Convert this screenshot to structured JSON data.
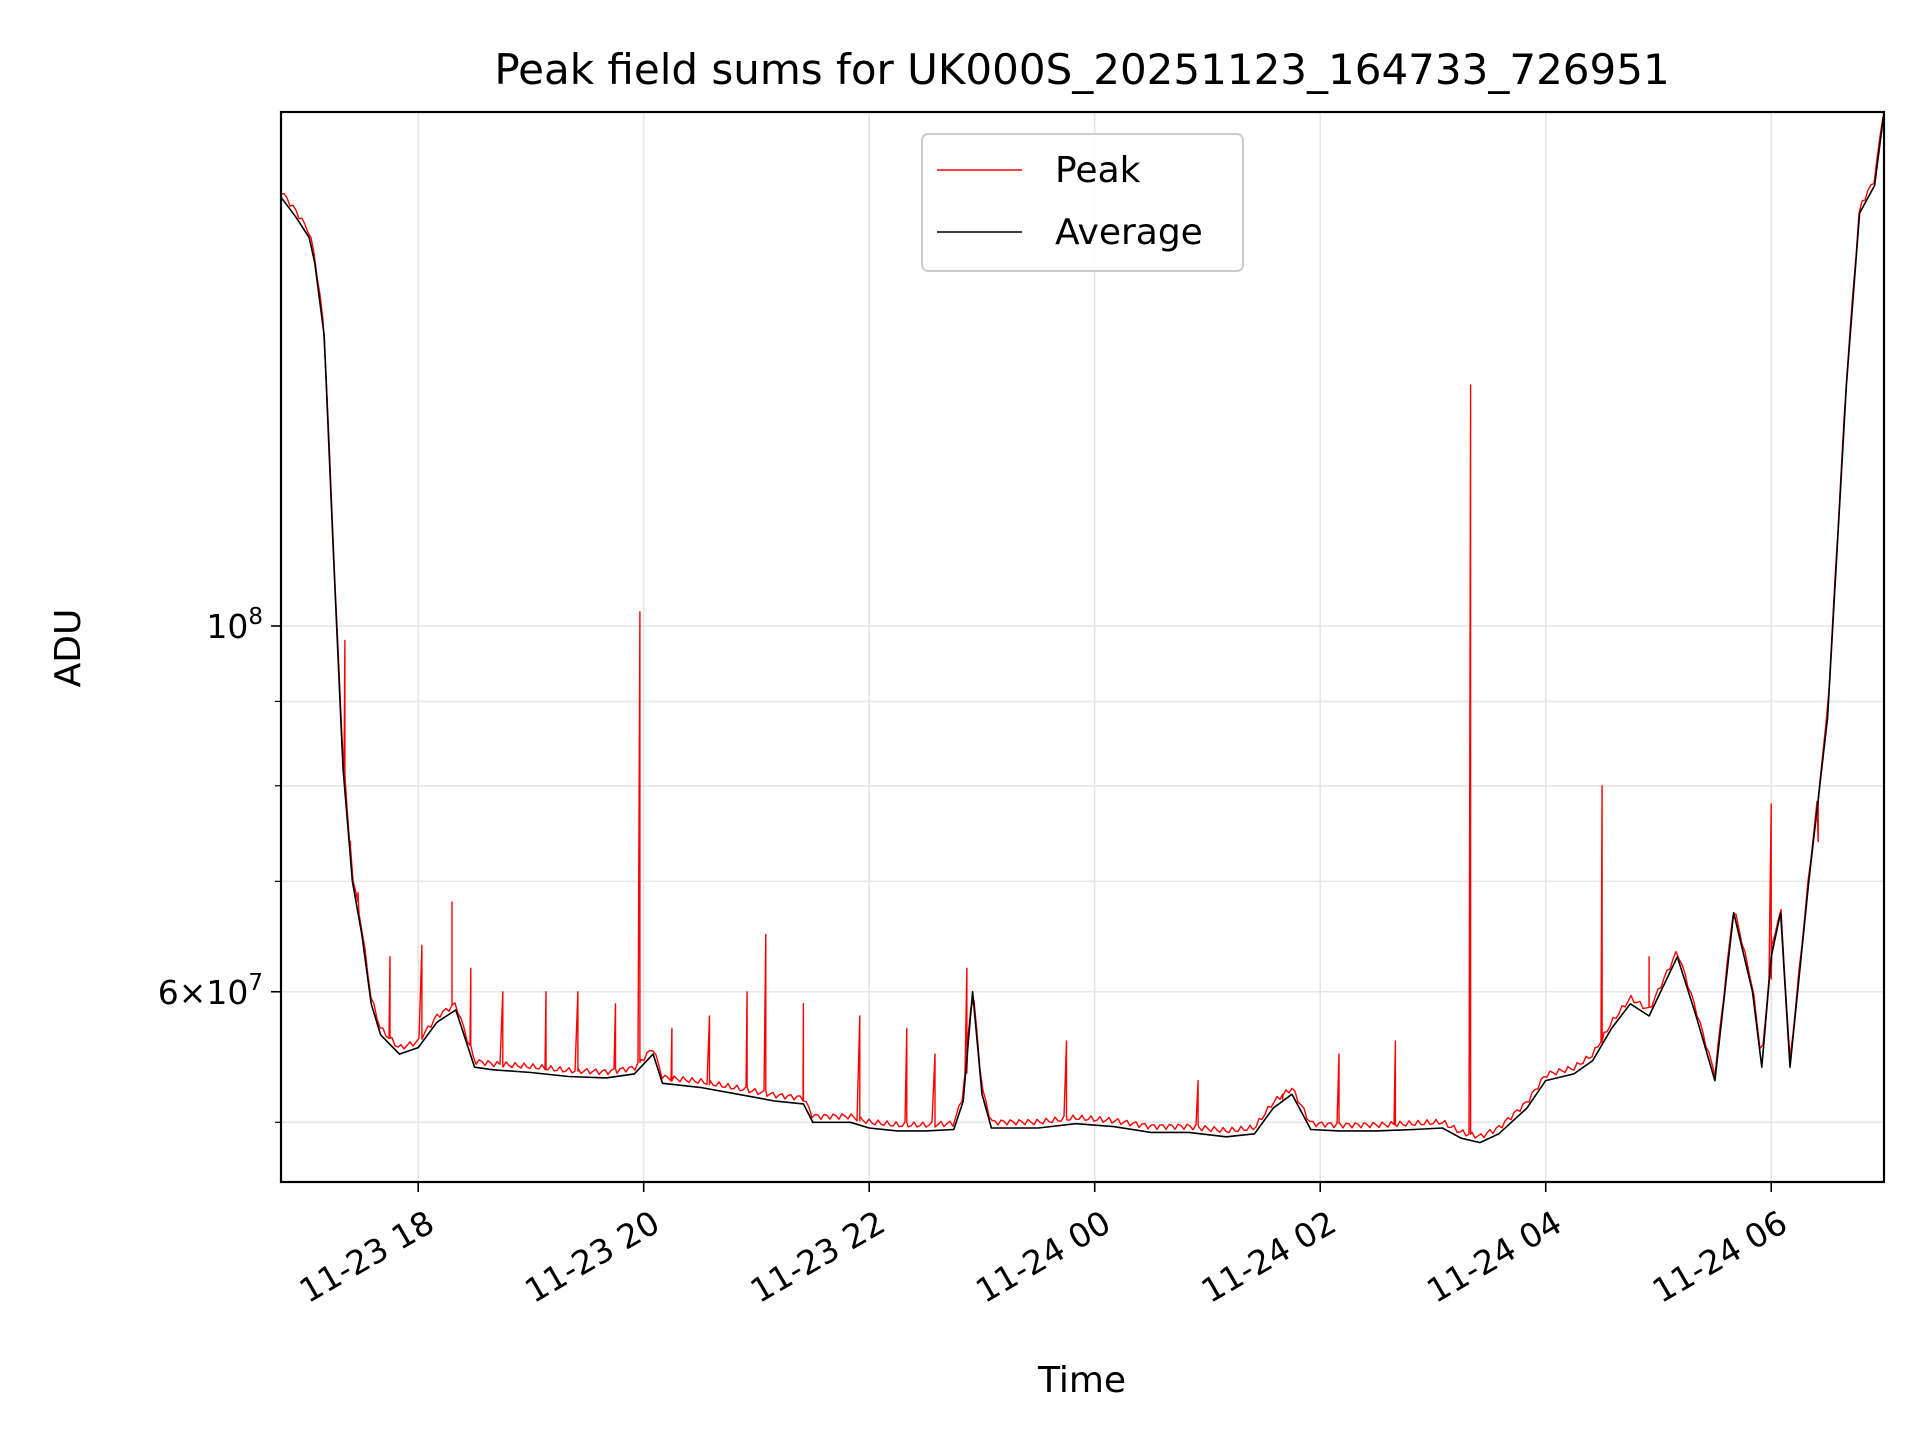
{
  "chart_data": {
    "type": "line",
    "title": "Peak field sums for UK000S_20251123_164733_726951",
    "xlabel": "Time",
    "ylabel": "ADU",
    "y_scale": "log",
    "grid": true,
    "legend_position": "upper-center",
    "xlim": [
      "11-23 16:47",
      "11-24 07:00"
    ],
    "ylim": [
      46000000,
      205000000
    ],
    "x_ticks": [
      "11-23 18",
      "11-23 20",
      "11-23 22",
      "11-24 00",
      "11-24 02",
      "11-24 04",
      "11-24 06"
    ],
    "y_ticks": [
      {
        "value": 100000000,
        "base": "10",
        "exp": "8",
        "mantissa": ""
      },
      {
        "value": 60000000,
        "base": "10",
        "exp": "7",
        "mantissa": "6"
      }
    ],
    "series": [
      {
        "name": "Peak",
        "color": "#ff0000",
        "spikes": [
          [
            "11-23 17:21",
            98000000
          ],
          [
            "11-23 17:24",
            74000000
          ],
          [
            "11-23 17:28",
            68000000
          ],
          [
            "11-23 17:45",
            63000000
          ],
          [
            "11-23 18:02",
            64000000
          ],
          [
            "11-23 18:18",
            68000000
          ],
          [
            "11-23 18:28",
            62000000
          ],
          [
            "11-23 18:45",
            60000000
          ],
          [
            "11-23 19:08",
            60000000
          ],
          [
            "11-23 19:25",
            60000000
          ],
          [
            "11-23 19:45",
            59000000
          ],
          [
            "11-23 19:58",
            102000000
          ],
          [
            "11-23 20:15",
            57000000
          ],
          [
            "11-23 20:35",
            58000000
          ],
          [
            "11-23 20:55",
            60000000
          ],
          [
            "11-23 21:05",
            65000000
          ],
          [
            "11-23 21:25",
            59000000
          ],
          [
            "11-23 21:55",
            58000000
          ],
          [
            "11-23 22:20",
            57000000
          ],
          [
            "11-23 22:35",
            55000000
          ],
          [
            "11-23 22:52",
            62000000
          ],
          [
            "11-23 23:45",
            56000000
          ],
          [
            "11-24 00:55",
            53000000
          ],
          [
            "11-24 01:40",
            52000000
          ],
          [
            "11-24 02:10",
            55000000
          ],
          [
            "11-24 02:40",
            56000000
          ],
          [
            "11-24 03:20",
            140000000
          ],
          [
            "11-24 04:30",
            80000000
          ],
          [
            "11-24 04:55",
            63000000
          ],
          [
            "11-24 06:00",
            78000000
          ],
          [
            "11-24 06:25",
            74000000
          ]
        ]
      },
      {
        "name": "Average",
        "color": "#000000",
        "points": [
          [
            "11-23 16:47",
            182000000
          ],
          [
            "11-23 16:55",
            177000000
          ],
          [
            "11-23 17:02",
            172000000
          ],
          [
            "11-23 17:05",
            166000000
          ],
          [
            "11-23 17:10",
            150000000
          ],
          [
            "11-23 17:15",
            110000000
          ],
          [
            "11-23 17:20",
            82000000
          ],
          [
            "11-23 17:25",
            70000000
          ],
          [
            "11-23 17:30",
            65000000
          ],
          [
            "11-23 17:35",
            59000000
          ],
          [
            "11-23 17:40",
            56500000
          ],
          [
            "11-23 17:50",
            55000000
          ],
          [
            "11-23 18:00",
            55500000
          ],
          [
            "11-23 18:10",
            57500000
          ],
          [
            "11-23 18:20",
            58500000
          ],
          [
            "11-23 18:30",
            54000000
          ],
          [
            "11-23 18:40",
            53800000
          ],
          [
            "11-23 19:00",
            53600000
          ],
          [
            "11-23 19:20",
            53300000
          ],
          [
            "11-23 19:40",
            53200000
          ],
          [
            "11-23 19:55",
            53500000
          ],
          [
            "11-23 20:05",
            55000000
          ],
          [
            "11-23 20:10",
            52800000
          ],
          [
            "11-23 20:30",
            52500000
          ],
          [
            "11-23 20:50",
            52000000
          ],
          [
            "11-23 21:10",
            51500000
          ],
          [
            "11-23 21:25",
            51300000
          ],
          [
            "11-23 21:30",
            50000000
          ],
          [
            "11-23 21:50",
            50000000
          ],
          [
            "11-23 22:00",
            49600000
          ],
          [
            "11-23 22:15",
            49400000
          ],
          [
            "11-23 22:30",
            49400000
          ],
          [
            "11-23 22:45",
            49500000
          ],
          [
            "11-23 22:50",
            51500000
          ],
          [
            "11-23 22:55",
            60000000
          ],
          [
            "11-23 23:00",
            52000000
          ],
          [
            "11-23 23:05",
            49600000
          ],
          [
            "11-23 23:30",
            49600000
          ],
          [
            "11-23 23:50",
            49900000
          ],
          [
            "11-24 00:10",
            49700000
          ],
          [
            "11-24 00:30",
            49300000
          ],
          [
            "11-24 00:50",
            49300000
          ],
          [
            "11-24 01:10",
            49000000
          ],
          [
            "11-24 01:25",
            49200000
          ],
          [
            "11-24 01:35",
            51000000
          ],
          [
            "11-24 01:45",
            52000000
          ],
          [
            "11-24 01:55",
            49500000
          ],
          [
            "11-24 02:10",
            49400000
          ],
          [
            "11-24 02:30",
            49400000
          ],
          [
            "11-24 02:50",
            49500000
          ],
          [
            "11-24 03:05",
            49600000
          ],
          [
            "11-24 03:15",
            48900000
          ],
          [
            "11-24 03:25",
            48600000
          ],
          [
            "11-24 03:35",
            49200000
          ],
          [
            "11-24 03:50",
            51000000
          ],
          [
            "11-24 04:00",
            53000000
          ],
          [
            "11-24 04:15",
            53500000
          ],
          [
            "11-24 04:25",
            54500000
          ],
          [
            "11-24 04:35",
            57000000
          ],
          [
            "11-24 04:45",
            59000000
          ],
          [
            "11-24 04:55",
            58000000
          ],
          [
            "11-24 05:10",
            63000000
          ],
          [
            "11-24 05:20",
            58000000
          ],
          [
            "11-24 05:30",
            53000000
          ],
          [
            "11-24 05:40",
            67000000
          ],
          [
            "11-24 05:50",
            60000000
          ],
          [
            "11-24 05:55",
            54000000
          ],
          [
            "11-24 06:00",
            63000000
          ],
          [
            "11-24 06:05",
            67000000
          ],
          [
            "11-24 06:10",
            54000000
          ],
          [
            "11-24 06:20",
            70000000
          ],
          [
            "11-24 06:30",
            88000000
          ],
          [
            "11-24 06:40",
            140000000
          ],
          [
            "11-24 06:47",
            178000000
          ],
          [
            "11-24 06:55",
            185000000
          ],
          [
            "11-24 07:00",
            205000000
          ]
        ]
      }
    ]
  }
}
